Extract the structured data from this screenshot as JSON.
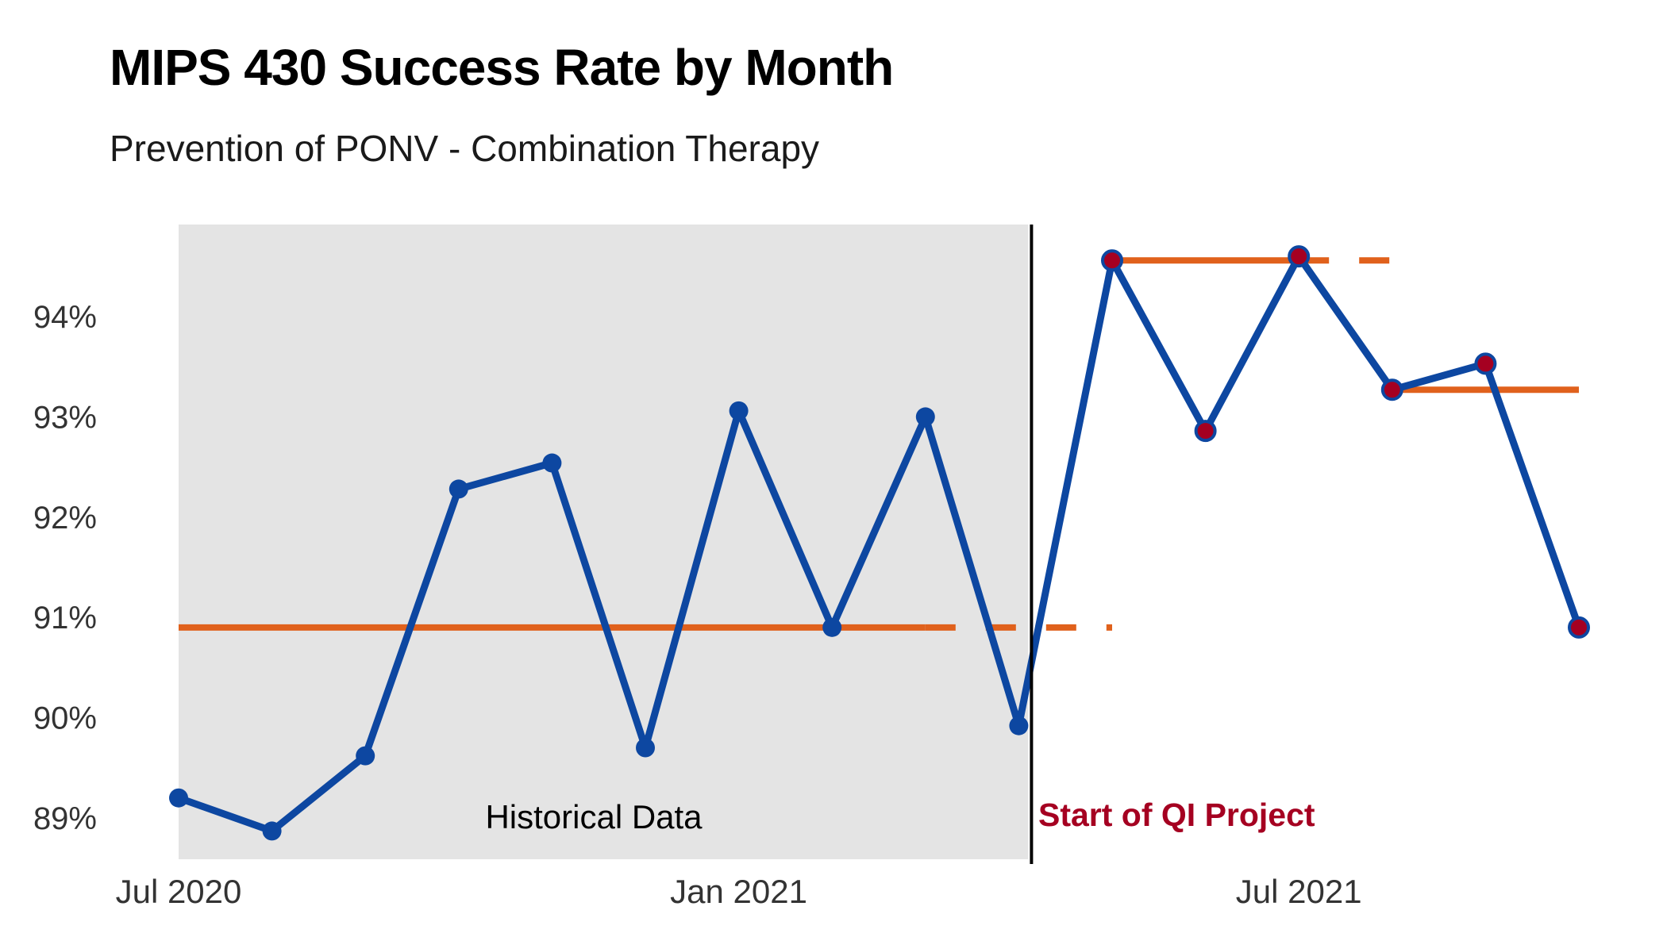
{
  "title": "MIPS 430 Success Rate by Month",
  "subtitle": "Prevention of PONV - Combination Therapy",
  "chart_data": {
    "type": "line",
    "ylim": [
      88.6,
      94.95
    ],
    "y_ticks": [
      89,
      90,
      91,
      92,
      93,
      94
    ],
    "y_tick_labels": [
      "89%",
      "90%",
      "91%",
      "92%",
      "93%",
      "94%"
    ],
    "x_ticks": [
      {
        "label": "Jul 2020",
        "month_index": 0
      },
      {
        "label": "Jan 2021",
        "month_index": 6
      },
      {
        "label": "Jul 2021",
        "month_index": 12
      }
    ],
    "grid": false,
    "series": [
      {
        "x": [
          "2020-07",
          "2020-08",
          "2020-09",
          "2020-10",
          "2020-11",
          "2020-12",
          "2021-01",
          "2021-02",
          "2021-03",
          "2021-04",
          "2021-05",
          "2021-06",
          "2021-07",
          "2021-08",
          "2021-09",
          "2021-10"
        ],
        "values": [
          89.2,
          88.87,
          89.62,
          92.28,
          92.54,
          89.7,
          93.06,
          90.9,
          93.0,
          89.92,
          94.56,
          92.86,
          94.6,
          93.27,
          93.53,
          90.9
        ],
        "phase": [
          "historical",
          "historical",
          "historical",
          "historical",
          "historical",
          "historical",
          "historical",
          "historical",
          "historical",
          "historical",
          "project",
          "project",
          "project",
          "project",
          "project",
          "project"
        ]
      }
    ],
    "median_lines": [
      {
        "value": 90.9,
        "from": "2020-07",
        "to": "2021-03",
        "style": "solid"
      },
      {
        "value": 90.9,
        "from": "2021-03",
        "to": "2021-05",
        "style": "dashed"
      },
      {
        "value": 94.56,
        "from": "2021-05",
        "to": "2021-07",
        "style": "solid"
      },
      {
        "value": 94.56,
        "from": "2021-07",
        "to": "2021-08",
        "style": "dashed"
      },
      {
        "value": 93.27,
        "from": "2021-08",
        "to": "2021-10",
        "style": "solid"
      }
    ],
    "shaded_region": {
      "from": "2020-07",
      "to": "2021-04",
      "label": "Historical Data"
    },
    "vertical_line": {
      "at": "2021-04",
      "label": "Start of QI Project"
    },
    "colors": {
      "line": "#0d47a1",
      "historical_point": "#0d47a1",
      "project_point": "#a50021",
      "median": "#e0611c",
      "shade": "#e4e4e4",
      "annotation": "#a50021",
      "vline": "#000000"
    }
  }
}
